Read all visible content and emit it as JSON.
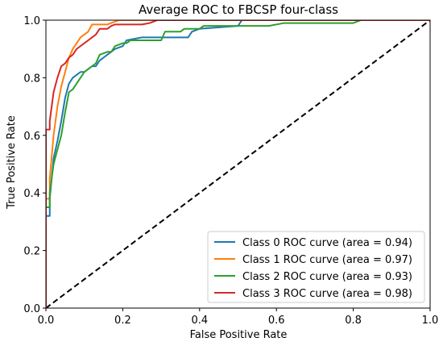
{
  "chart_data": {
    "type": "line",
    "title": "Average ROC to FBCSP four-class",
    "xlabel": "False Positive Rate",
    "ylabel": "True Positive Rate",
    "xlim": [
      0.0,
      1.0
    ],
    "ylim": [
      0.0,
      1.0
    ],
    "xticks": [
      "0.0",
      "0.2",
      "0.4",
      "0.6",
      "0.8",
      "1.0"
    ],
    "yticks": [
      "0.0",
      "0.2",
      "0.4",
      "0.6",
      "0.8",
      "1.0"
    ],
    "grid": false,
    "legend_position": "lower-right",
    "series": [
      {
        "name": "Class 0 ROC curve (area = 0.94)",
        "color": "#1f77b4",
        "x": [
          0,
          0,
          0.01,
          0.01,
          0.02,
          0.03,
          0.04,
          0.05,
          0.06,
          0.07,
          0.08,
          0.09,
          0.1,
          0.11,
          0.12,
          0.13,
          0.14,
          0.16,
          0.18,
          0.2,
          0.21,
          0.25,
          0.3,
          0.37,
          0.38,
          0.4,
          0.5,
          0.51,
          1.0
        ],
        "y": [
          0,
          0.32,
          0.32,
          0.38,
          0.52,
          0.58,
          0.65,
          0.73,
          0.78,
          0.8,
          0.81,
          0.82,
          0.82,
          0.83,
          0.84,
          0.84,
          0.86,
          0.88,
          0.9,
          0.91,
          0.93,
          0.94,
          0.94,
          0.94,
          0.96,
          0.97,
          0.98,
          1.0,
          1.0
        ]
      },
      {
        "name": "Class 1 ROC curve (area = 0.97)",
        "color": "#ff7f0e",
        "x": [
          0,
          0,
          0.01,
          0.01,
          0.02,
          0.03,
          0.04,
          0.05,
          0.06,
          0.07,
          0.08,
          0.09,
          0.1,
          0.11,
          0.12,
          0.14,
          0.16,
          0.19,
          0.2,
          0.27,
          0.28,
          1.0
        ],
        "y": [
          0,
          0.38,
          0.38,
          0.45,
          0.6,
          0.7,
          0.77,
          0.82,
          0.87,
          0.9,
          0.92,
          0.94,
          0.95,
          0.96,
          0.985,
          0.985,
          0.985,
          1.0,
          1.0,
          1.0,
          1.0,
          1.0
        ]
      },
      {
        "name": "Class 2 ROC curve (area = 0.93)",
        "color": "#2ca02c",
        "x": [
          0,
          0,
          0.01,
          0.01,
          0.02,
          0.03,
          0.04,
          0.05,
          0.06,
          0.07,
          0.08,
          0.09,
          0.1,
          0.12,
          0.13,
          0.14,
          0.16,
          0.17,
          0.18,
          0.2,
          0.21,
          0.22,
          0.25,
          0.3,
          0.31,
          0.35,
          0.36,
          0.4,
          0.41,
          0.45,
          0.5,
          0.55,
          0.58,
          0.62,
          0.65,
          0.8,
          0.82,
          1.0
        ],
        "y": [
          0,
          0.35,
          0.35,
          0.4,
          0.5,
          0.55,
          0.6,
          0.68,
          0.75,
          0.76,
          0.78,
          0.8,
          0.82,
          0.84,
          0.85,
          0.88,
          0.89,
          0.89,
          0.91,
          0.92,
          0.92,
          0.93,
          0.93,
          0.93,
          0.96,
          0.96,
          0.97,
          0.97,
          0.98,
          0.98,
          0.98,
          0.98,
          0.98,
          0.99,
          0.99,
          0.99,
          1.0,
          1.0
        ]
      },
      {
        "name": "Class 3 ROC curve (area = 0.98)",
        "color": "#d62728",
        "x": [
          0,
          0,
          0.01,
          0.01,
          0.02,
          0.03,
          0.04,
          0.05,
          0.06,
          0.07,
          0.08,
          0.09,
          0.1,
          0.11,
          0.12,
          0.13,
          0.14,
          0.16,
          0.17,
          0.18,
          0.2,
          0.22,
          0.25,
          0.27,
          0.28,
          0.29,
          1.0
        ],
        "y": [
          0,
          0.62,
          0.62,
          0.65,
          0.75,
          0.8,
          0.84,
          0.85,
          0.87,
          0.88,
          0.9,
          0.91,
          0.92,
          0.93,
          0.94,
          0.95,
          0.97,
          0.97,
          0.98,
          0.985,
          0.985,
          0.985,
          0.985,
          0.99,
          0.995,
          1.0,
          1.0
        ]
      }
    ],
    "reference_line": {
      "style": "dashed",
      "color": "#000000",
      "x": [
        0,
        1
      ],
      "y": [
        0,
        1
      ]
    }
  }
}
